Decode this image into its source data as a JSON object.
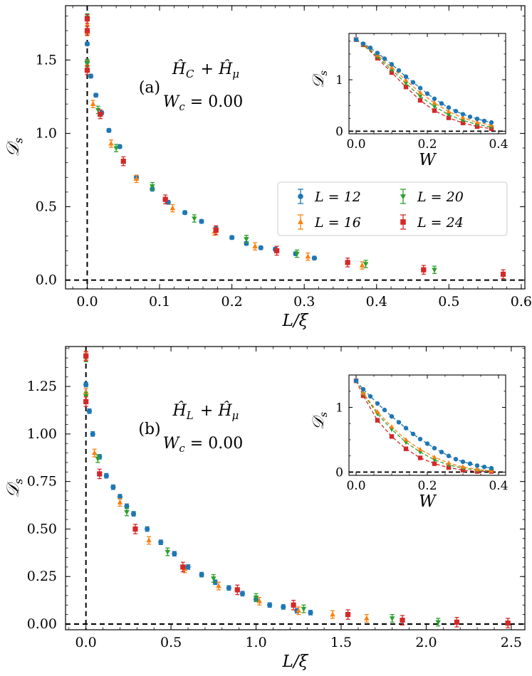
{
  "colors": {
    "L12": "#1f77b4",
    "L16": "#ff7f0e",
    "L20": "#2ca02c",
    "L24": "#d62728"
  },
  "legend": [
    {
      "key": "L12",
      "label": "L = 12",
      "marker": "circle"
    },
    {
      "key": "L16",
      "label": "L = 16",
      "marker": "triangle-up"
    },
    {
      "key": "L20",
      "label": "L = 20",
      "marker": "triangle-down"
    },
    {
      "key": "L24",
      "label": "L = 24",
      "marker": "square"
    }
  ],
  "chart_data": [
    {
      "panel": "a",
      "type": "scatter",
      "panel_label": "(a)",
      "hamiltonian": "Ĥ_C + Ĥ_μ",
      "critical_label": "W_c = 0.00",
      "xlabel": "L/ξ",
      "ylabel": "D_s",
      "xlim": [
        -0.03,
        0.605
      ],
      "ylim": [
        -0.06,
        1.87
      ],
      "xticks": [
        "0.0",
        "0.1",
        "0.2",
        "0.3",
        "0.4",
        "0.5",
        "0.6"
      ],
      "yticks": [
        "0.0",
        "0.5",
        "1.0",
        "1.5"
      ],
      "xtick_values": [
        0,
        0.1,
        0.2,
        0.3,
        0.4,
        0.5,
        0.6
      ],
      "ytick_values": [
        0,
        0.5,
        1.0,
        1.5
      ],
      "hline": 0,
      "vline": 0,
      "series": [
        {
          "key": "L12",
          "x": [
            0,
            0,
            0,
            0.005,
            0.012,
            0.02,
            0.03,
            0.045,
            0.068,
            0.09,
            0.112,
            0.135,
            0.158,
            0.178,
            0.2,
            0.22,
            0.24,
            0.26,
            0.288,
            0.314
          ],
          "y": [
            1.78,
            1.61,
            1.49,
            1.39,
            1.26,
            1.14,
            1.02,
            0.91,
            0.7,
            0.62,
            0.53,
            0.46,
            0.4,
            0.35,
            0.29,
            0.25,
            0.22,
            0.21,
            0.18,
            0.15
          ],
          "err": 0.012
        },
        {
          "key": "L16",
          "x": [
            0,
            0,
            0,
            0.008,
            0.033,
            0.068,
            0.118,
            0.176,
            0.232,
            0.305,
            0.38
          ],
          "y": [
            1.74,
            1.69,
            1.47,
            1.2,
            0.93,
            0.69,
            0.49,
            0.33,
            0.23,
            0.16,
            0.1
          ],
          "err": 0.025
        },
        {
          "key": "L20",
          "x": [
            0,
            0,
            0.015,
            0.04,
            0.09,
            0.148,
            0.22,
            0.29,
            0.385,
            0.48
          ],
          "y": [
            1.79,
            1.48,
            1.16,
            0.9,
            0.64,
            0.42,
            0.28,
            0.18,
            0.11,
            0.07
          ],
          "err": 0.025
        },
        {
          "key": "L24",
          "x": [
            0,
            0,
            0,
            0.018,
            0.05,
            0.108,
            0.178,
            0.262,
            0.36,
            0.465,
            0.575
          ],
          "y": [
            1.78,
            1.7,
            1.43,
            1.13,
            0.81,
            0.55,
            0.34,
            0.2,
            0.12,
            0.07,
            0.04
          ],
          "err": 0.03
        }
      ],
      "inset": {
        "xlabel": "W",
        "ylabel": "D_s",
        "xlim": [
          -0.02,
          0.42
        ],
        "ylim": [
          -0.05,
          1.9
        ],
        "xticks": [
          "0.0",
          "0.2",
          "0.4"
        ],
        "yticks": [
          "0",
          "1"
        ],
        "xtick_values": [
          0,
          0.2,
          0.4
        ],
        "ytick_values": [
          0,
          1
        ],
        "hline": 0,
        "series": [
          {
            "key": "L12",
            "x": [
              0,
              0.02,
              0.04,
              0.06,
              0.08,
              0.1,
              0.12,
              0.14,
              0.16,
              0.18,
              0.2,
              0.22,
              0.24,
              0.26,
              0.28,
              0.3,
              0.32,
              0.34,
              0.36,
              0.38
            ],
            "y": [
              1.78,
              1.7,
              1.62,
              1.52,
              1.41,
              1.3,
              1.18,
              1.06,
              0.95,
              0.84,
              0.73,
              0.63,
              0.54,
              0.46,
              0.39,
              0.33,
              0.28,
              0.24,
              0.2,
              0.17
            ]
          },
          {
            "key": "L16",
            "x": [
              0,
              0.02,
              0.06,
              0.1,
              0.14,
              0.18,
              0.22,
              0.26,
              0.3,
              0.34,
              0.38
            ],
            "y": [
              1.78,
              1.69,
              1.48,
              1.24,
              0.99,
              0.75,
              0.55,
              0.38,
              0.26,
              0.17,
              0.12
            ]
          },
          {
            "key": "L20",
            "x": [
              0,
              0.02,
              0.06,
              0.1,
              0.14,
              0.18,
              0.22,
              0.26,
              0.3,
              0.34,
              0.38
            ],
            "y": [
              1.78,
              1.68,
              1.45,
              1.19,
              0.93,
              0.68,
              0.48,
              0.32,
              0.21,
              0.13,
              0.08
            ]
          },
          {
            "key": "L24",
            "x": [
              0,
              0.02,
              0.06,
              0.1,
              0.14,
              0.18,
              0.22,
              0.26,
              0.3,
              0.34,
              0.38
            ],
            "y": [
              1.78,
              1.68,
              1.42,
              1.14,
              0.86,
              0.6,
              0.4,
              0.26,
              0.16,
              0.09,
              0.05
            ]
          }
        ]
      }
    },
    {
      "panel": "b",
      "type": "scatter",
      "panel_label": "(b)",
      "hamiltonian": "Ĥ_L + Ĥ_μ",
      "critical_label": "W_c = 0.00",
      "xlabel": "L/ξ",
      "ylabel": "D_s",
      "xlim": [
        -0.12,
        2.58
      ],
      "ylim": [
        -0.03,
        1.46
      ],
      "xticks": [
        "0.0",
        "0.5",
        "1.0",
        "1.5",
        "2.0",
        "2.5"
      ],
      "yticks": [
        "0.00",
        "0.25",
        "0.50",
        "0.75",
        "1.00",
        "1.25"
      ],
      "xtick_values": [
        0,
        0.5,
        1.0,
        1.5,
        2.0,
        2.5
      ],
      "ytick_values": [
        0,
        0.25,
        0.5,
        0.75,
        1.0,
        1.25
      ],
      "hline": 0,
      "vline": 0,
      "series": [
        {
          "key": "L12",
          "x": [
            0,
            0,
            0.02,
            0.04,
            0.08,
            0.12,
            0.16,
            0.2,
            0.24,
            0.28,
            0.36,
            0.44,
            0.52,
            0.6,
            0.68,
            0.76,
            0.84,
            0.92,
            1.0,
            1.08,
            1.16,
            1.24,
            1.32
          ],
          "y": [
            1.41,
            1.26,
            1.12,
            1.0,
            0.88,
            0.78,
            0.72,
            0.67,
            0.62,
            0.58,
            0.5,
            0.43,
            0.37,
            0.3,
            0.26,
            0.22,
            0.19,
            0.16,
            0.13,
            0.1,
            0.09,
            0.07,
            0.06
          ],
          "err": 0.012
        },
        {
          "key": "L16",
          "x": [
            0,
            0,
            0.05,
            0.2,
            0.37,
            0.58,
            0.78,
            1.02,
            1.25,
            1.45,
            1.65
          ],
          "y": [
            1.41,
            1.22,
            0.9,
            0.64,
            0.44,
            0.29,
            0.2,
            0.12,
            0.07,
            0.05,
            0.03
          ],
          "err": 0.02
        },
        {
          "key": "L20",
          "x": [
            0,
            0,
            0.07,
            0.24,
            0.48,
            0.75,
            1.0,
            1.28,
            1.8,
            2.07
          ],
          "y": [
            1.4,
            1.2,
            0.87,
            0.59,
            0.38,
            0.24,
            0.14,
            0.08,
            0.03,
            0.01
          ],
          "err": 0.02
        },
        {
          "key": "L24",
          "x": [
            0,
            0,
            0.08,
            0.29,
            0.57,
            0.89,
            1.22,
            1.54,
            1.86,
            2.18,
            2.48
          ],
          "y": [
            1.41,
            1.17,
            0.79,
            0.5,
            0.3,
            0.18,
            0.1,
            0.05,
            0.02,
            0.01,
            0.005
          ],
          "err": 0.025
        }
      ],
      "inset": {
        "xlabel": "W",
        "ylabel": "D_s",
        "xlim": [
          -0.02,
          0.42
        ],
        "ylim": [
          -0.05,
          1.5
        ],
        "xticks": [
          "0.0",
          "0.2",
          "0.4"
        ],
        "yticks": [
          "0",
          "1"
        ],
        "xtick_values": [
          0,
          0.2,
          0.4
        ],
        "ytick_values": [
          0,
          1
        ],
        "hline": 0,
        "series": [
          {
            "key": "L12",
            "x": [
              0,
              0.02,
              0.04,
              0.06,
              0.08,
              0.1,
              0.12,
              0.14,
              0.16,
              0.18,
              0.2,
              0.22,
              0.24,
              0.26,
              0.28,
              0.3,
              0.32,
              0.34,
              0.36,
              0.38
            ],
            "y": [
              1.41,
              1.28,
              1.17,
              1.06,
              0.96,
              0.86,
              0.77,
              0.68,
              0.59,
              0.51,
              0.44,
              0.37,
              0.31,
              0.25,
              0.2,
              0.16,
              0.13,
              0.1,
              0.08,
              0.06
            ]
          },
          {
            "key": "L16",
            "x": [
              0,
              0.02,
              0.06,
              0.1,
              0.14,
              0.18,
              0.22,
              0.26,
              0.3,
              0.34,
              0.38
            ],
            "y": [
              1.41,
              1.22,
              0.93,
              0.7,
              0.5,
              0.35,
              0.23,
              0.14,
              0.08,
              0.04,
              0.02
            ]
          },
          {
            "key": "L20",
            "x": [
              0,
              0.02,
              0.06,
              0.1,
              0.14,
              0.18,
              0.22,
              0.26,
              0.3,
              0.34,
              0.38
            ],
            "y": [
              1.41,
              1.21,
              0.9,
              0.66,
              0.46,
              0.31,
              0.19,
              0.11,
              0.06,
              0.03,
              0.02
            ]
          },
          {
            "key": "L24",
            "x": [
              0,
              0.02,
              0.06,
              0.1,
              0.14,
              0.18,
              0.22,
              0.26,
              0.3,
              0.34,
              0.38
            ],
            "y": [
              1.41,
              1.18,
              0.8,
              0.55,
              0.36,
              0.22,
              0.13,
              0.07,
              0.03,
              0.01,
              0.01
            ]
          }
        ]
      }
    }
  ]
}
